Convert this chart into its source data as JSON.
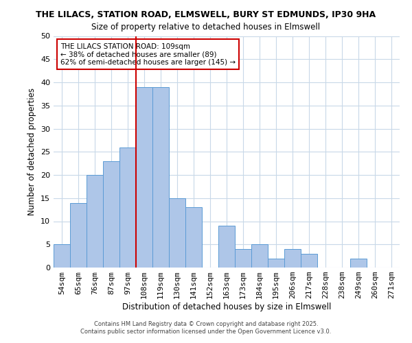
{
  "title1": "THE LILACS, STATION ROAD, ELMSWELL, BURY ST EDMUNDS, IP30 9HA",
  "title2": "Size of property relative to detached houses in Elmswell",
  "xlabel": "Distribution of detached houses by size in Elmswell",
  "ylabel": "Number of detached properties",
  "bin_labels": [
    "54sqm",
    "65sqm",
    "76sqm",
    "87sqm",
    "97sqm",
    "108sqm",
    "119sqm",
    "130sqm",
    "141sqm",
    "152sqm",
    "163sqm",
    "173sqm",
    "184sqm",
    "195sqm",
    "206sqm",
    "217sqm",
    "228sqm",
    "238sqm",
    "249sqm",
    "260sqm",
    "271sqm"
  ],
  "counts": [
    5,
    14,
    20,
    23,
    26,
    39,
    39,
    15,
    13,
    0,
    9,
    4,
    5,
    2,
    4,
    3,
    0,
    0,
    2,
    0,
    0
  ],
  "bar_color": "#aec6e8",
  "bar_edge_color": "#5b9bd5",
  "vline_index": 5,
  "vline_color": "#cc0000",
  "annotation_text": "THE LILACS STATION ROAD: 109sqm\n← 38% of detached houses are smaller (89)\n62% of semi-detached houses are larger (145) →",
  "annotation_box_color": "#ffffff",
  "annotation_box_edge": "#cc0000",
  "ylim": [
    0,
    50
  ],
  "yticks": [
    0,
    5,
    10,
    15,
    20,
    25,
    30,
    35,
    40,
    45,
    50
  ],
  "footer1": "Contains HM Land Registry data © Crown copyright and database right 2025.",
  "footer2": "Contains public sector information licensed under the Open Government Licence v3.0.",
  "bg_color": "#ffffff",
  "grid_color": "#c8d8e8"
}
